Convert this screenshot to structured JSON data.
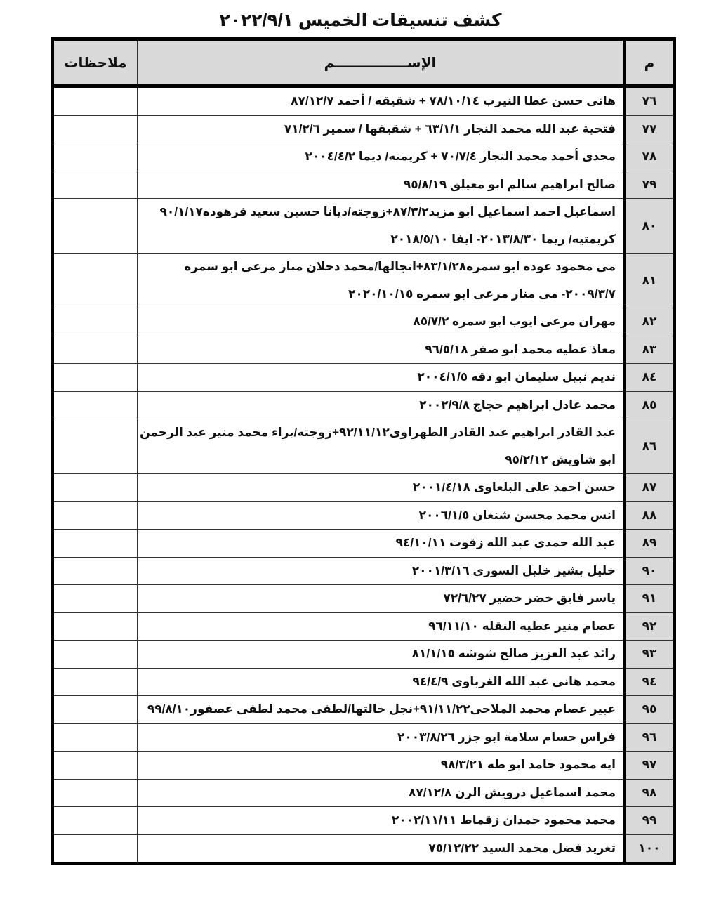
{
  "title": "كشف تنسيقات الخميس ٢٠٢٢/٩/١",
  "headers": {
    "number": "م",
    "name": "الإســـــــــــــــم",
    "notes": "ملاحظات"
  },
  "rows": [
    {
      "no": "٧٦",
      "lines": [
        "هانى حسن عطا النيرب ٧٨/١٠/١٤ + شقيقه / أحمد ٨٧/١٢/٧"
      ],
      "notes": ""
    },
    {
      "no": "٧٧",
      "lines": [
        "فتحية عبد الله محمد النجار ٦٣/١/١ + شقيقها / سمير ٧١/٢/٦"
      ],
      "notes": ""
    },
    {
      "no": "٧٨",
      "lines": [
        "مجدى أحمد محمد النجار ٧٠/٧/٤ + كريمته/ ديما ٢٠٠٤/٤/٢"
      ],
      "notes": ""
    },
    {
      "no": "٧٩",
      "lines": [
        "صالح ابراهيم سالم ابو معيلق ٩٥/٨/١٩"
      ],
      "notes": ""
    },
    {
      "no": "٨٠",
      "lines": [
        "اسماعيل احمد اسماعيل ابو مزيد٨٧/٣/٢+زوجته/ديانا حسين سعيد فرهوده٩٠/١/١٧",
        "كريمتيه/ ريما ٢٠١٣/٨/٣٠- ايفا ٢٠١٨/٥/١٠"
      ],
      "notes": ""
    },
    {
      "no": "٨١",
      "lines": [
        "مى محمود عوده ابو سمره٨٣/١/٢٨+انجالها/محمد دحلان منار مرعى ابو سمره",
        "٢٠٠٩/٣/٧- مى منار مرعى ابو سمره ٢٠٢٠/١٠/١٥"
      ],
      "notes": ""
    },
    {
      "no": "٨٢",
      "lines": [
        "مهران مرعى ايوب ابو سمره ٨٥/٧/٢"
      ],
      "notes": ""
    },
    {
      "no": "٨٣",
      "lines": [
        "معاذ عطيه محمد ابو صفر ٩٦/٥/١٨"
      ],
      "notes": ""
    },
    {
      "no": "٨٤",
      "lines": [
        "نديم نبيل سليمان ابو دقه ٢٠٠٤/١/٥"
      ],
      "notes": ""
    },
    {
      "no": "٨٥",
      "lines": [
        "محمد عادل ابراهيم حجاج ٢٠٠٢/٩/٨"
      ],
      "notes": ""
    },
    {
      "no": "٨٦",
      "lines": [
        "عبد القادر ابراهيم عبد القادر الطهراوى٩٢/١١/١٢+زوجته/براء محمد منير عبد الرحمن",
        "ابو شاويش ٩٥/٢/١٢"
      ],
      "notes": ""
    },
    {
      "no": "٨٧",
      "lines": [
        "حسن احمد على البلعاوى ٢٠٠١/٤/١٨"
      ],
      "notes": ""
    },
    {
      "no": "٨٨",
      "lines": [
        "انس محمد محسن شنغان ٢٠٠٦/١/٥"
      ],
      "notes": ""
    },
    {
      "no": "٨٩",
      "lines": [
        "عبد الله حمدى عبد الله زقوت ٩٤/١٠/١١"
      ],
      "notes": ""
    },
    {
      "no": "٩٠",
      "lines": [
        "خليل بشير خليل السورى ٢٠٠١/٣/١٦"
      ],
      "notes": ""
    },
    {
      "no": "٩١",
      "lines": [
        "ياسر فايق خضر خضير ٧٢/٦/٢٧"
      ],
      "notes": ""
    },
    {
      "no": "٩٢",
      "lines": [
        "عصام منير عطيه النقله ٩٦/١١/١٠"
      ],
      "notes": ""
    },
    {
      "no": "٩٣",
      "lines": [
        "رائد عبد العزيز صالح شوشه ٨١/١/١٥"
      ],
      "notes": ""
    },
    {
      "no": "٩٤",
      "lines": [
        "محمد هانى عبد الله الغرباوى ٩٤/٤/٩"
      ],
      "notes": ""
    },
    {
      "no": "٩٥",
      "lines": [
        "عبير عصام محمد الملاحى٩١/١١/٢٢+نجل خالتها/لطفى محمد لطفى عصفور٩٩/٨/١٠"
      ],
      "notes": ""
    },
    {
      "no": "٩٦",
      "lines": [
        "فراس حسام سلامة ابو جزر ٢٠٠٣/٨/٢٦"
      ],
      "notes": ""
    },
    {
      "no": "٩٧",
      "lines": [
        "ايه محمود حامد ابو طه ٩٨/٣/٢١"
      ],
      "notes": ""
    },
    {
      "no": "٩٨",
      "lines": [
        "محمد اسماعيل درويش الرن ٨٧/١٢/٨"
      ],
      "notes": ""
    },
    {
      "no": "٩٩",
      "lines": [
        "محمد محمود حمدان زقماط ٢٠٠٢/١١/١١"
      ],
      "notes": ""
    },
    {
      "no": "١٠٠",
      "lines": [
        "تغريد فضل محمد السيد ٧٥/١٢/٢٢"
      ],
      "notes": ""
    }
  ]
}
